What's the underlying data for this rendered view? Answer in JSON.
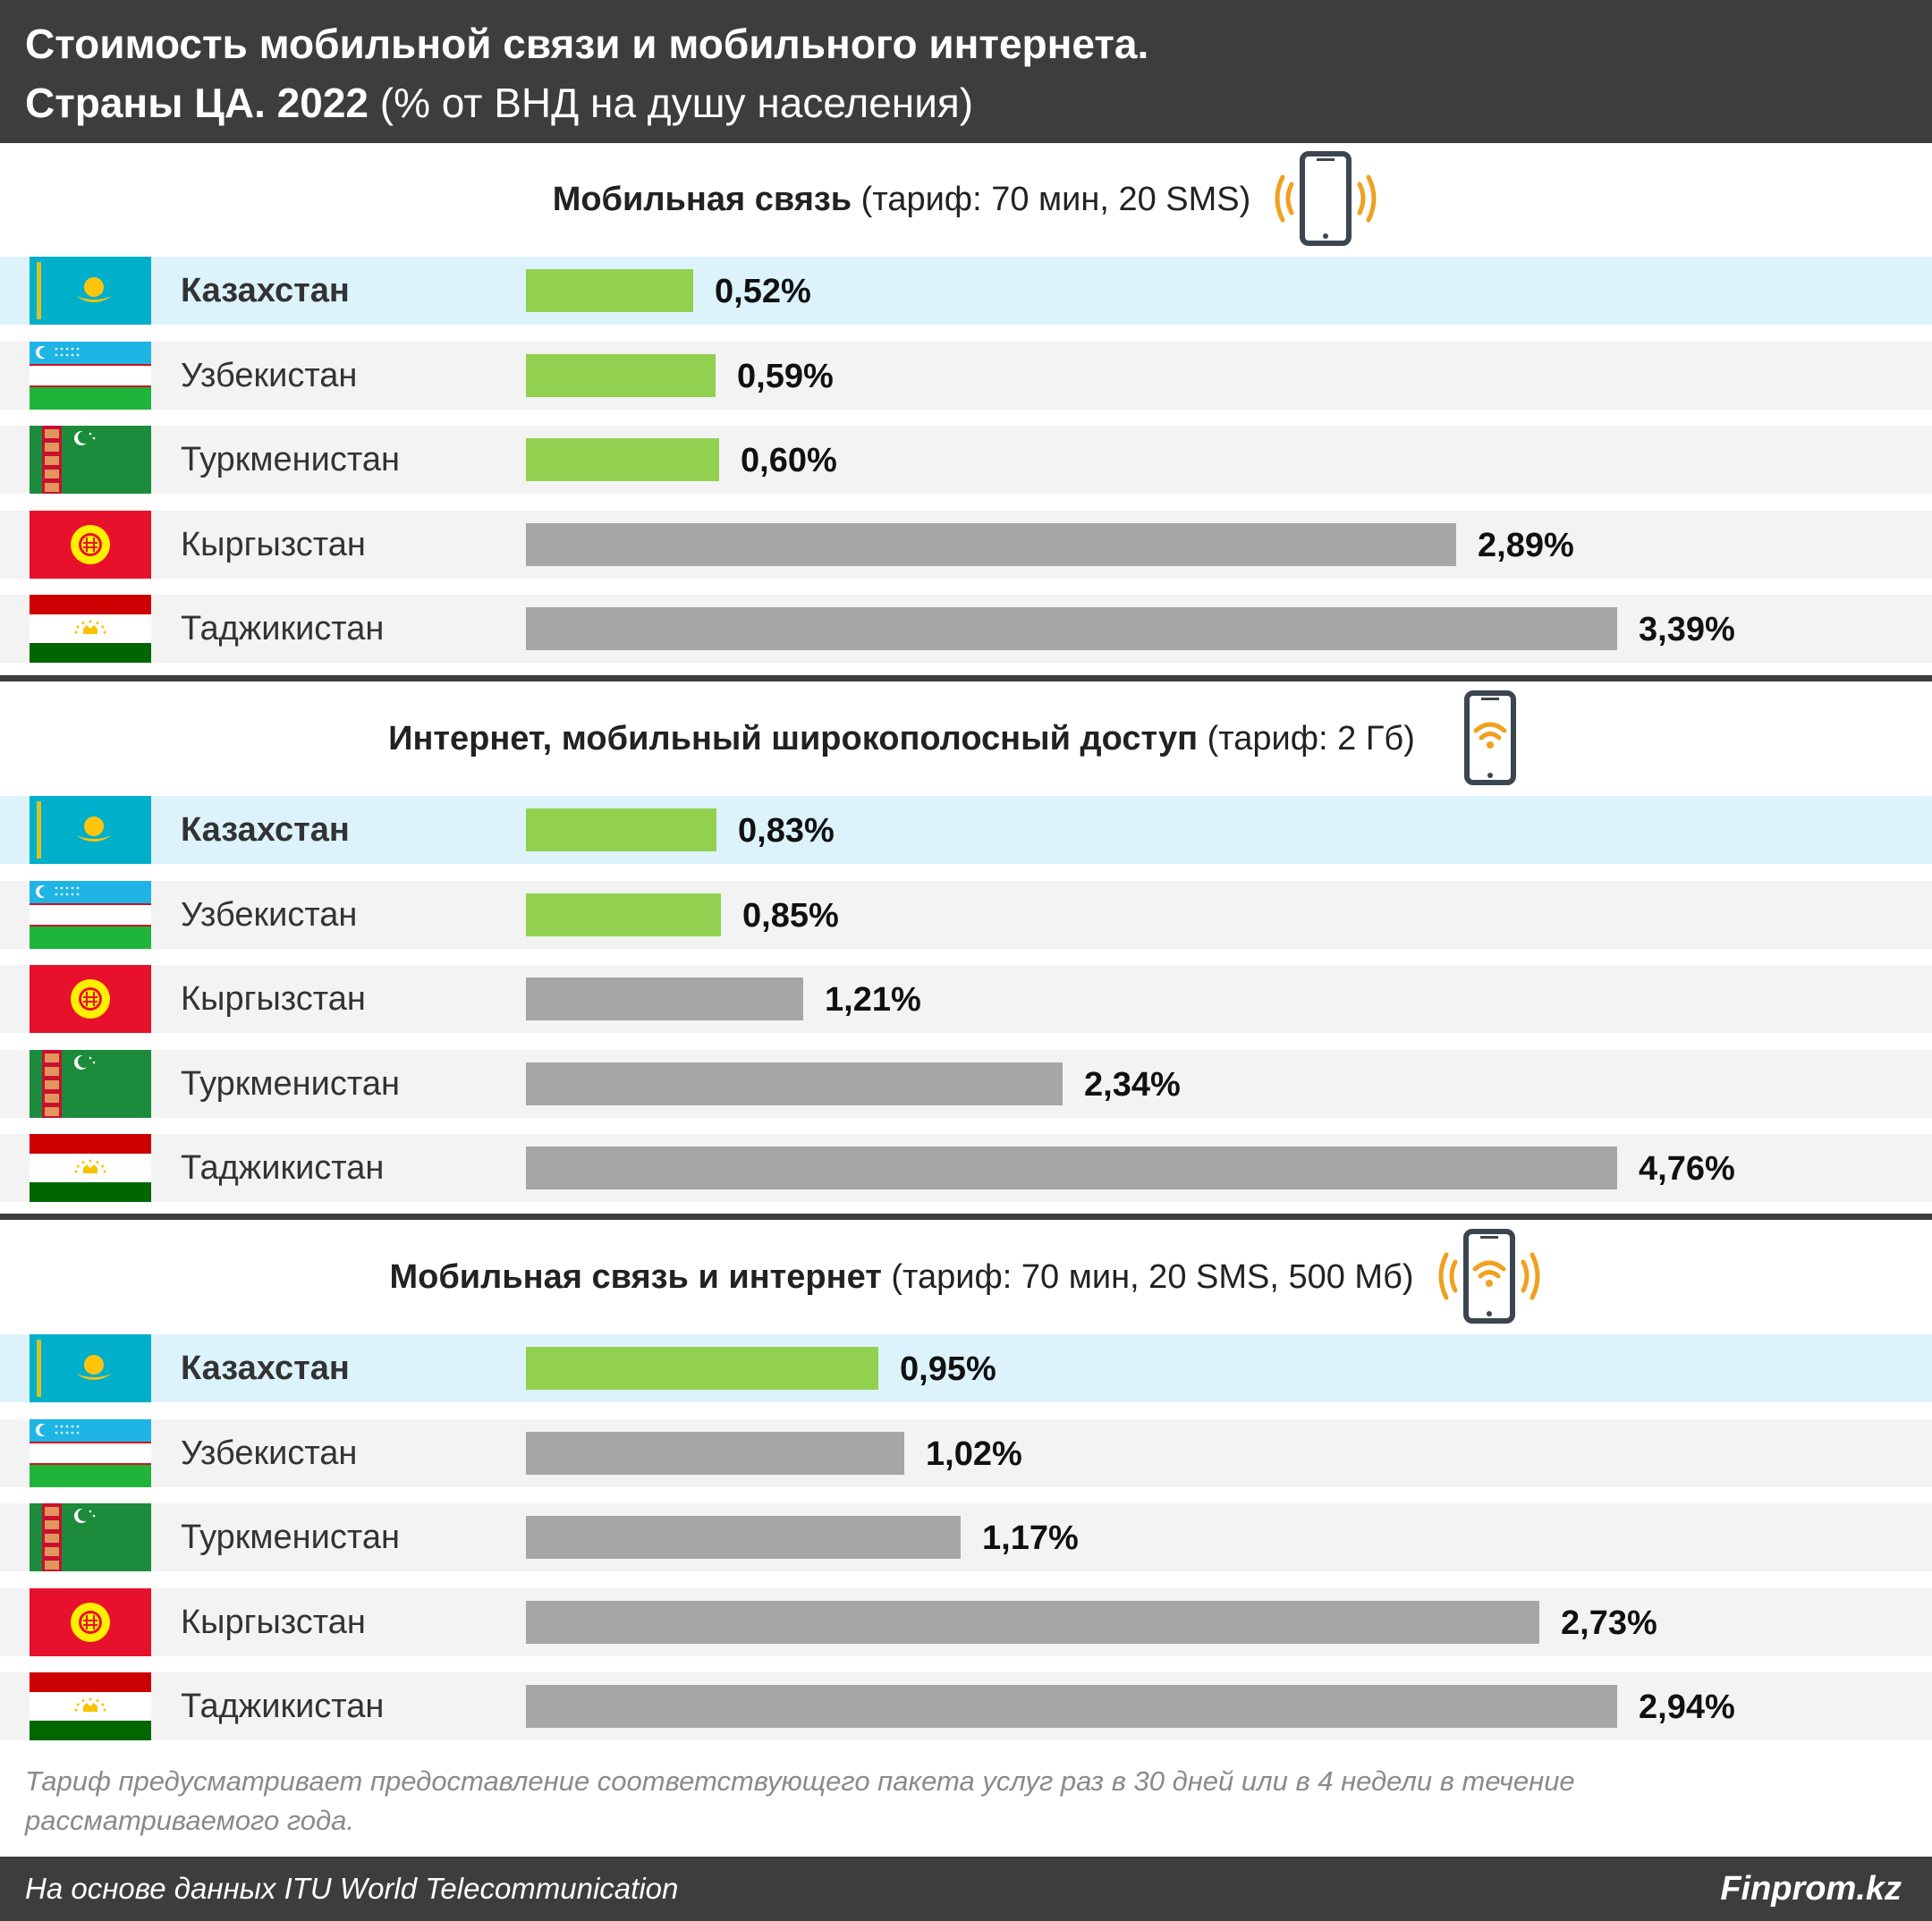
{
  "title": {
    "line1": "Стоимость мобильной связи и мобильного интернета.",
    "line2_bold": "Страны ЦА. 2022",
    "line2_rest": " (% от ВНД на душу населения)"
  },
  "colors": {
    "green": "#92d050",
    "gray": "#a6a6a6",
    "highlight_row": "#dcf3fc",
    "row": "#f3f3f3",
    "dark": "#3d3d3d",
    "icon_accent": "#f0a020"
  },
  "chart_data": [
    {
      "type": "bar",
      "orientation": "horizontal",
      "title_bold": "Мобильная связь",
      "title_rest": " (тариф: 70 мин, 20 SMS)",
      "icon": "phone-signal-icon",
      "xlim": [
        0,
        3.39
      ],
      "categories": [
        "Казахстан",
        "Узбекистан",
        "Туркменистан",
        "Кыргызстан",
        "Таджикистан"
      ],
      "values": [
        0.52,
        0.59,
        0.6,
        2.89,
        3.39
      ],
      "labels": [
        "0,52%",
        "0,59%",
        "0,60%",
        "2,89%",
        "3,39%"
      ],
      "bar_colors": [
        "green",
        "green",
        "green",
        "gray",
        "gray"
      ],
      "highlight": "Казахстан"
    },
    {
      "type": "bar",
      "orientation": "horizontal",
      "title_bold": "Интернет, мобильный широкополосный доступ",
      "title_rest": " (тариф: 2 Гб)",
      "icon": "phone-wifi-icon",
      "xlim": [
        0,
        4.76
      ],
      "categories": [
        "Казахстан",
        "Узбекистан",
        "Кыргызстан",
        "Туркменистан",
        "Таджикистан"
      ],
      "values": [
        0.83,
        0.85,
        1.21,
        2.34,
        4.76
      ],
      "labels": [
        "0,83%",
        "0,85%",
        "1,21%",
        "2,34%",
        "4,76%"
      ],
      "bar_colors": [
        "green",
        "green",
        "gray",
        "gray",
        "gray"
      ],
      "highlight": "Казахстан"
    },
    {
      "type": "bar",
      "orientation": "horizontal",
      "title_bold": "Мобильная связь и интернет",
      "title_rest": " (тариф: 70 мин, 20 SMS, 500 Мб)",
      "icon": "phone-wifi-signal-icon",
      "xlim": [
        0,
        2.94
      ],
      "categories": [
        "Казахстан",
        "Узбекистан",
        "Туркменистан",
        "Кыргызстан",
        "Таджикистан"
      ],
      "values": [
        0.95,
        1.02,
        1.17,
        2.73,
        2.94
      ],
      "labels": [
        "0,95%",
        "1,02%",
        "1,17%",
        "2,73%",
        "2,94%"
      ],
      "bar_colors": [
        "green",
        "gray",
        "gray",
        "gray",
        "gray"
      ],
      "highlight": "Казахстан"
    }
  ],
  "note": "Тариф предусматривает предоставление соответствующего пакета услуг раз в 30 дней или в 4 недели в течение рассматриваемого года.",
  "footer": {
    "source": "На основе данных ITU World Telecommunication",
    "brand": "Finprom.kz"
  }
}
